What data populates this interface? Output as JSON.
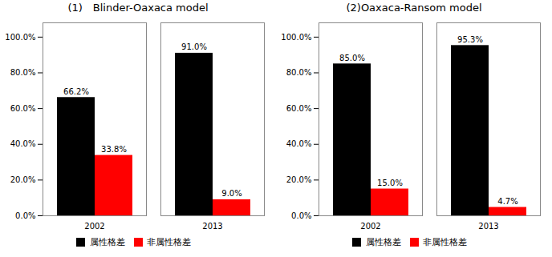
{
  "chart_data": [
    {
      "type": "bar",
      "title": "(1)　Blinder-Oaxaca model",
      "categories": [
        "2002",
        "2013"
      ],
      "series": [
        {
          "name": "属性格差",
          "color": "#000000",
          "values": [
            66.2,
            91.0
          ],
          "value_labels": [
            "66.2%",
            "91.0%"
          ]
        },
        {
          "name": "非属性格差",
          "color": "#ff0000",
          "values": [
            33.8,
            9.0
          ],
          "value_labels": [
            "33.8%",
            "9.0%"
          ]
        }
      ],
      "ylim": [
        0,
        108
      ],
      "yticks": [
        {
          "value": 0,
          "label": "0.0%"
        },
        {
          "value": 20,
          "label": "20.0%"
        },
        {
          "value": 40,
          "label": "40.0%"
        },
        {
          "value": 60,
          "label": "60.0%"
        },
        {
          "value": 80,
          "label": "80.0%"
        },
        {
          "value": 100,
          "label": "100.0%"
        }
      ],
      "data_labels": true,
      "legend": "bottom",
      "grid": false
    },
    {
      "type": "bar",
      "title": "(2)Oaxaca-Ransom model",
      "categories": [
        "2002",
        "2013"
      ],
      "series": [
        {
          "name": "属性格差",
          "color": "#000000",
          "values": [
            85.0,
            95.3
          ],
          "value_labels": [
            "85.0%",
            "95.3%"
          ]
        },
        {
          "name": "非属性格差",
          "color": "#ff0000",
          "values": [
            15.0,
            4.7
          ],
          "value_labels": [
            "15.0%",
            "4.7%"
          ]
        }
      ],
      "ylim": [
        0,
        108
      ],
      "yticks": [
        {
          "value": 0,
          "label": "0.0%"
        },
        {
          "value": 20,
          "label": "20.0%"
        },
        {
          "value": 40,
          "label": "40.0%"
        },
        {
          "value": 60,
          "label": "60.0%"
        },
        {
          "value": 80,
          "label": "80.0%"
        },
        {
          "value": 100,
          "label": "100.0%"
        }
      ],
      "data_labels": true,
      "legend": "bottom",
      "grid": false
    }
  ]
}
